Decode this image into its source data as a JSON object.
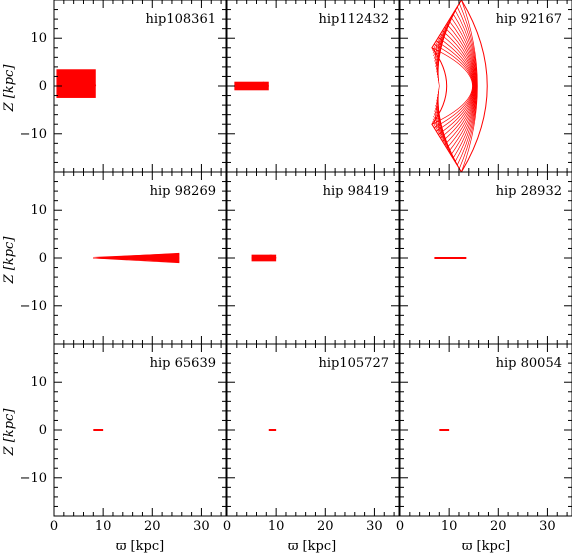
{
  "figure": {
    "xlabel": "ϖ [kpc]",
    "ylabel": "Z [kpc]"
  },
  "chart_data": {
    "type": "scatter",
    "layout": {
      "rows": 3,
      "cols": 3
    },
    "xlim": [
      0,
      35
    ],
    "ylim": [
      -18,
      18
    ],
    "x_ticks": [
      0,
      10,
      20,
      30
    ],
    "y_ticks": [
      -10,
      0,
      10
    ],
    "xlabel": "ϖ [kpc]",
    "ylabel": "Z [kpc]",
    "series_color": "#ff0000",
    "panels": [
      {
        "title": "hip108361",
        "orbit": {
          "shape": "box",
          "x_range": [
            0.5,
            8.5
          ],
          "z_range": [
            -2.5,
            3.5
          ]
        }
      },
      {
        "title": "hip112432",
        "orbit": {
          "shape": "box",
          "x_range": [
            1.5,
            8.5
          ],
          "z_range": [
            -0.9,
            0.9
          ]
        }
      },
      {
        "title": "hip 92167",
        "orbit": {
          "shape": "lens",
          "x_range": [
            6.5,
            22
          ],
          "z_range": [
            -18,
            18
          ]
        }
      },
      {
        "title": "hip 98269",
        "orbit": {
          "shape": "wedge",
          "x_range": [
            8,
            25.5
          ],
          "z_range": [
            -1,
            1
          ]
        }
      },
      {
        "title": "hip 98419",
        "orbit": {
          "shape": "box",
          "x_range": [
            5,
            10
          ],
          "z_range": [
            -0.7,
            0.7
          ]
        }
      },
      {
        "title": "hip 28932",
        "orbit": {
          "shape": "line",
          "x_range": [
            7,
            13.5
          ],
          "z_range": [
            -0.15,
            0.15
          ]
        }
      },
      {
        "title": "hip 65639",
        "orbit": {
          "shape": "line",
          "x_range": [
            8,
            10
          ],
          "z_range": [
            -0.15,
            0.15
          ]
        }
      },
      {
        "title": "hip105727",
        "orbit": {
          "shape": "line",
          "x_range": [
            8.5,
            10
          ],
          "z_range": [
            -0.15,
            0.15
          ]
        }
      },
      {
        "title": "hip 80054",
        "orbit": {
          "shape": "line",
          "x_range": [
            8,
            10
          ],
          "z_range": [
            -0.15,
            0.15
          ]
        }
      }
    ]
  }
}
